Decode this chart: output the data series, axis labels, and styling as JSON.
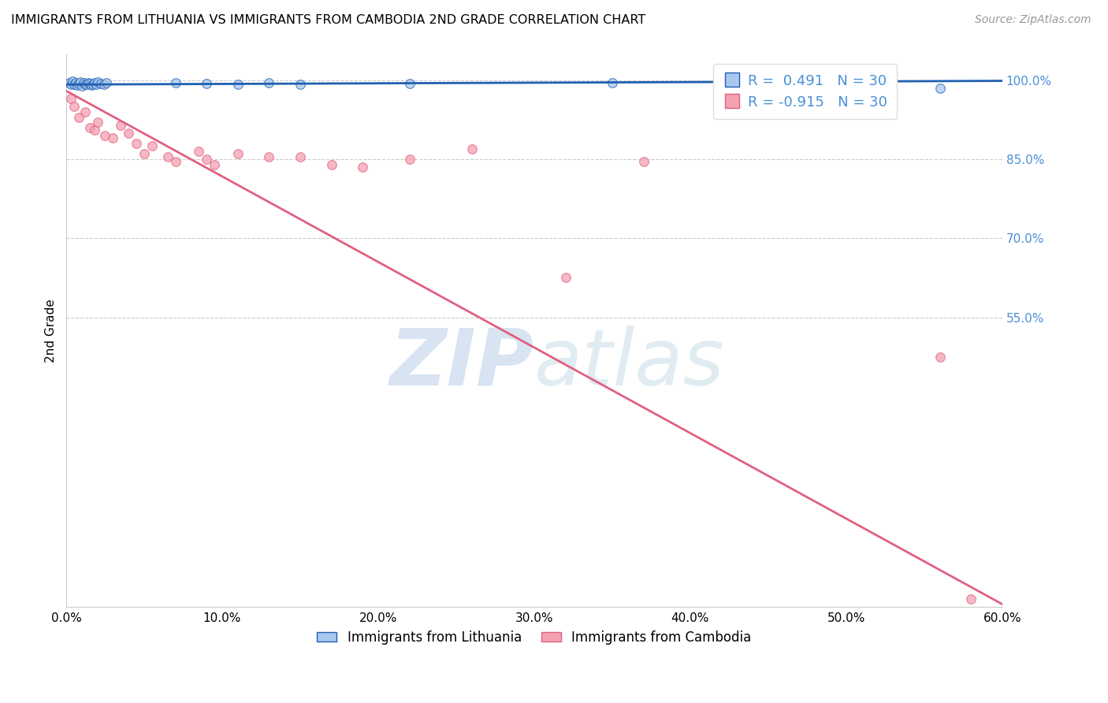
{
  "title": "IMMIGRANTS FROM LITHUANIA VS IMMIGRANTS FROM CAMBODIA 2ND GRADE CORRELATION CHART",
  "source": "Source: ZipAtlas.com",
  "ylabel": "2nd Grade",
  "R_lithuania": 0.491,
  "N_lithuania": 30,
  "R_cambodia": -0.915,
  "N_cambodia": 30,
  "color_lithuania": "#a8c8f0",
  "color_cambodia": "#f4a0b0",
  "color_line_lithuania": "#2060b0",
  "color_line_cambodia": "#e06080",
  "color_right_axis": "#4a90d9",
  "watermark_color": "#ccdded",
  "background_color": "#ffffff",
  "ymin": 0,
  "ymax": 105,
  "xmin": 0,
  "xmax": 60,
  "yticks": [
    55,
    70,
    85,
    100
  ],
  "ytick_labels": [
    "55.0%",
    "70.0%",
    "85.0%",
    "100.0%"
  ],
  "xticks": [
    0,
    10,
    20,
    30,
    40,
    50,
    60
  ],
  "xtick_labels": [
    "0.0%",
    "10.0%",
    "20.0%",
    "30.0%",
    "40.0%",
    "50.0%",
    "60.0%"
  ],
  "lithuania_x": [
    0.2,
    0.3,
    0.4,
    0.5,
    0.6,
    0.7,
    0.8,
    0.9,
    1.0,
    1.1,
    1.2,
    1.3,
    1.4,
    1.5,
    1.6,
    1.7,
    1.8,
    1.9,
    2.0,
    2.2,
    2.4,
    2.6,
    7.0,
    9.0,
    11.0,
    13.0,
    15.0,
    22.0,
    35.0,
    56.0
  ],
  "lithuania_y": [
    99.5,
    99.2,
    99.8,
    99.3,
    99.6,
    99.1,
    99.4,
    99.7,
    99.0,
    99.5,
    99.3,
    99.2,
    99.6,
    99.4,
    99.1,
    99.3,
    99.5,
    99.2,
    99.7,
    99.4,
    99.3,
    99.5,
    99.6,
    99.4,
    99.2,
    99.5,
    99.3,
    99.4,
    99.5,
    98.5
  ],
  "cambodia_x": [
    0.3,
    0.5,
    0.8,
    1.2,
    1.5,
    1.8,
    2.0,
    2.5,
    3.0,
    3.5,
    4.0,
    4.5,
    5.0,
    5.5,
    6.5,
    7.0,
    8.5,
    9.0,
    9.5,
    11.0,
    13.0,
    15.0,
    17.0,
    19.0,
    22.0,
    26.0,
    32.0,
    37.0,
    56.0,
    58.0
  ],
  "cambodia_y": [
    96.5,
    95.0,
    93.0,
    94.0,
    91.0,
    90.5,
    92.0,
    89.5,
    89.0,
    91.5,
    90.0,
    88.0,
    86.0,
    87.5,
    85.5,
    84.5,
    86.5,
    85.0,
    84.0,
    86.0,
    85.5,
    85.5,
    84.0,
    83.5,
    85.0,
    87.0,
    62.5,
    84.5,
    47.5,
    1.5
  ],
  "lith_line_x": [
    0,
    60
  ],
  "lith_line_y": [
    99.2,
    99.9
  ],
  "camb_line_x": [
    0,
    60
  ],
  "camb_line_y": [
    98.0,
    0.5
  ]
}
